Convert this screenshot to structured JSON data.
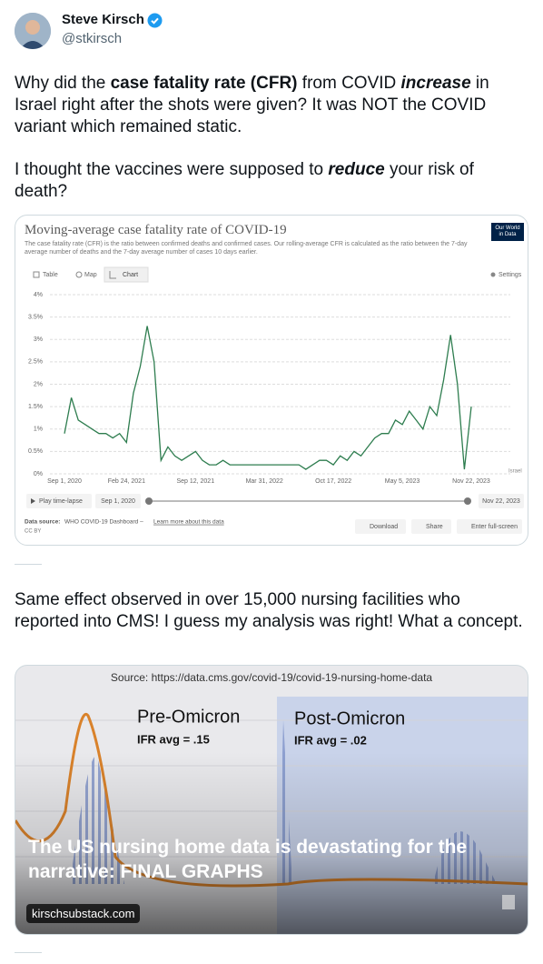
{
  "author": {
    "name": "Steve Kirsch",
    "handle": "@stkirsch"
  },
  "paragraphs": [
    [
      "Why did the ",
      "case fatality rate (CFR)",
      " from COVID ",
      "increase",
      " in Israel right after the shots were given? It was NOT the COVID variant which remained static."
    ],
    [
      "I thought the vaccines were supposed to ",
      "reduce",
      " your risk of death?"
    ],
    [
      "Same effect observed in over 15,000 nursing facilities who reported into CMS! I guess my analysis was right! What a concept."
    ]
  ],
  "card1": {
    "logo": [
      "Our World",
      "in Data"
    ],
    "tabs": [
      "Table",
      "Map",
      "Chart"
    ],
    "settings": "Settings",
    "timeline": {
      "play": "Play time-lapse",
      "start": "Sep 1, 2020",
      "end": "Nov 22, 2023"
    },
    "source_label": "Data source:",
    "source": "WHO COVID-19 Dashboard –",
    "learn": "Learn more about this data",
    "license": "CC BY",
    "buttons": [
      "Download",
      "Share",
      "Enter full-screen"
    ]
  },
  "chart_data": {
    "type": "line",
    "title": "Moving-average case fatality rate of COVID-19",
    "subtitle": "The case fatality rate (CFR) is the ratio between confirmed deaths and confirmed cases. Our rolling-average CFR is calculated as the ratio between the 7-day average number of deaths and the 7-day average number of cases 10 days earlier.",
    "categories": [
      "Sep 1, 2020",
      null,
      null,
      null,
      null,
      null,
      null,
      null,
      null,
      "Feb 24, 2021",
      null,
      null,
      null,
      null,
      null,
      null,
      null,
      null,
      null,
      "Sep 12, 2021",
      null,
      null,
      null,
      null,
      null,
      null,
      null,
      null,
      null,
      "Mar 31, 2022",
      null,
      null,
      null,
      null,
      null,
      null,
      null,
      null,
      null,
      "Oct 17, 2022",
      null,
      null,
      null,
      null,
      null,
      null,
      null,
      null,
      null,
      "May 5, 2023",
      null,
      null,
      null,
      null,
      null,
      null,
      null,
      null,
      null,
      "Nov 22, 2023"
    ],
    "series": [
      {
        "name": "Israel",
        "color": "#2e7d4f",
        "values": [
          0.9,
          1.7,
          1.2,
          1.1,
          1.0,
          0.9,
          0.9,
          0.8,
          0.9,
          0.7,
          1.8,
          2.4,
          3.3,
          2.5,
          0.3,
          0.6,
          0.4,
          0.3,
          0.4,
          0.5,
          0.3,
          0.2,
          0.2,
          0.3,
          0.2,
          0.2,
          0.2,
          0.2,
          0.2,
          0.2,
          0.2,
          0.2,
          0.2,
          0.2,
          0.2,
          0.1,
          0.2,
          0.3,
          0.3,
          0.2,
          0.4,
          0.3,
          0.5,
          0.4,
          0.6,
          0.8,
          0.9,
          0.9,
          1.2,
          1.1,
          1.4,
          1.2,
          1.0,
          1.5,
          1.3,
          2.1,
          3.1,
          2.0,
          0.1,
          1.5
        ]
      }
    ],
    "ylim": [
      0,
      4
    ],
    "yticks": [
      {
        "value": 0,
        "label": "0%"
      },
      {
        "value": 0.5,
        "label": "0.5%"
      },
      {
        "value": 1,
        "label": "1%"
      },
      {
        "value": 1.5,
        "label": "1.5%"
      },
      {
        "value": 2,
        "label": "2%"
      },
      {
        "value": 2.5,
        "label": "2.5%"
      },
      {
        "value": 3,
        "label": "3%"
      },
      {
        "value": 3.5,
        "label": "3.5%"
      },
      {
        "value": 4,
        "label": "4%"
      }
    ],
    "grid": true
  },
  "card2": {
    "source": "Source: https://data.cms.gov/covid-19/covid-19-nursing-home-data",
    "pre": "Pre-Omicron",
    "pre_ifr": "IFR avg = .15",
    "post": "Post-Omicron",
    "post_ifr": "IFR avg = .02",
    "headline": "The US nursing home data is devastating for the narrative: FINAL GRAPHS",
    "domain": "kirschsubstack.com"
  }
}
